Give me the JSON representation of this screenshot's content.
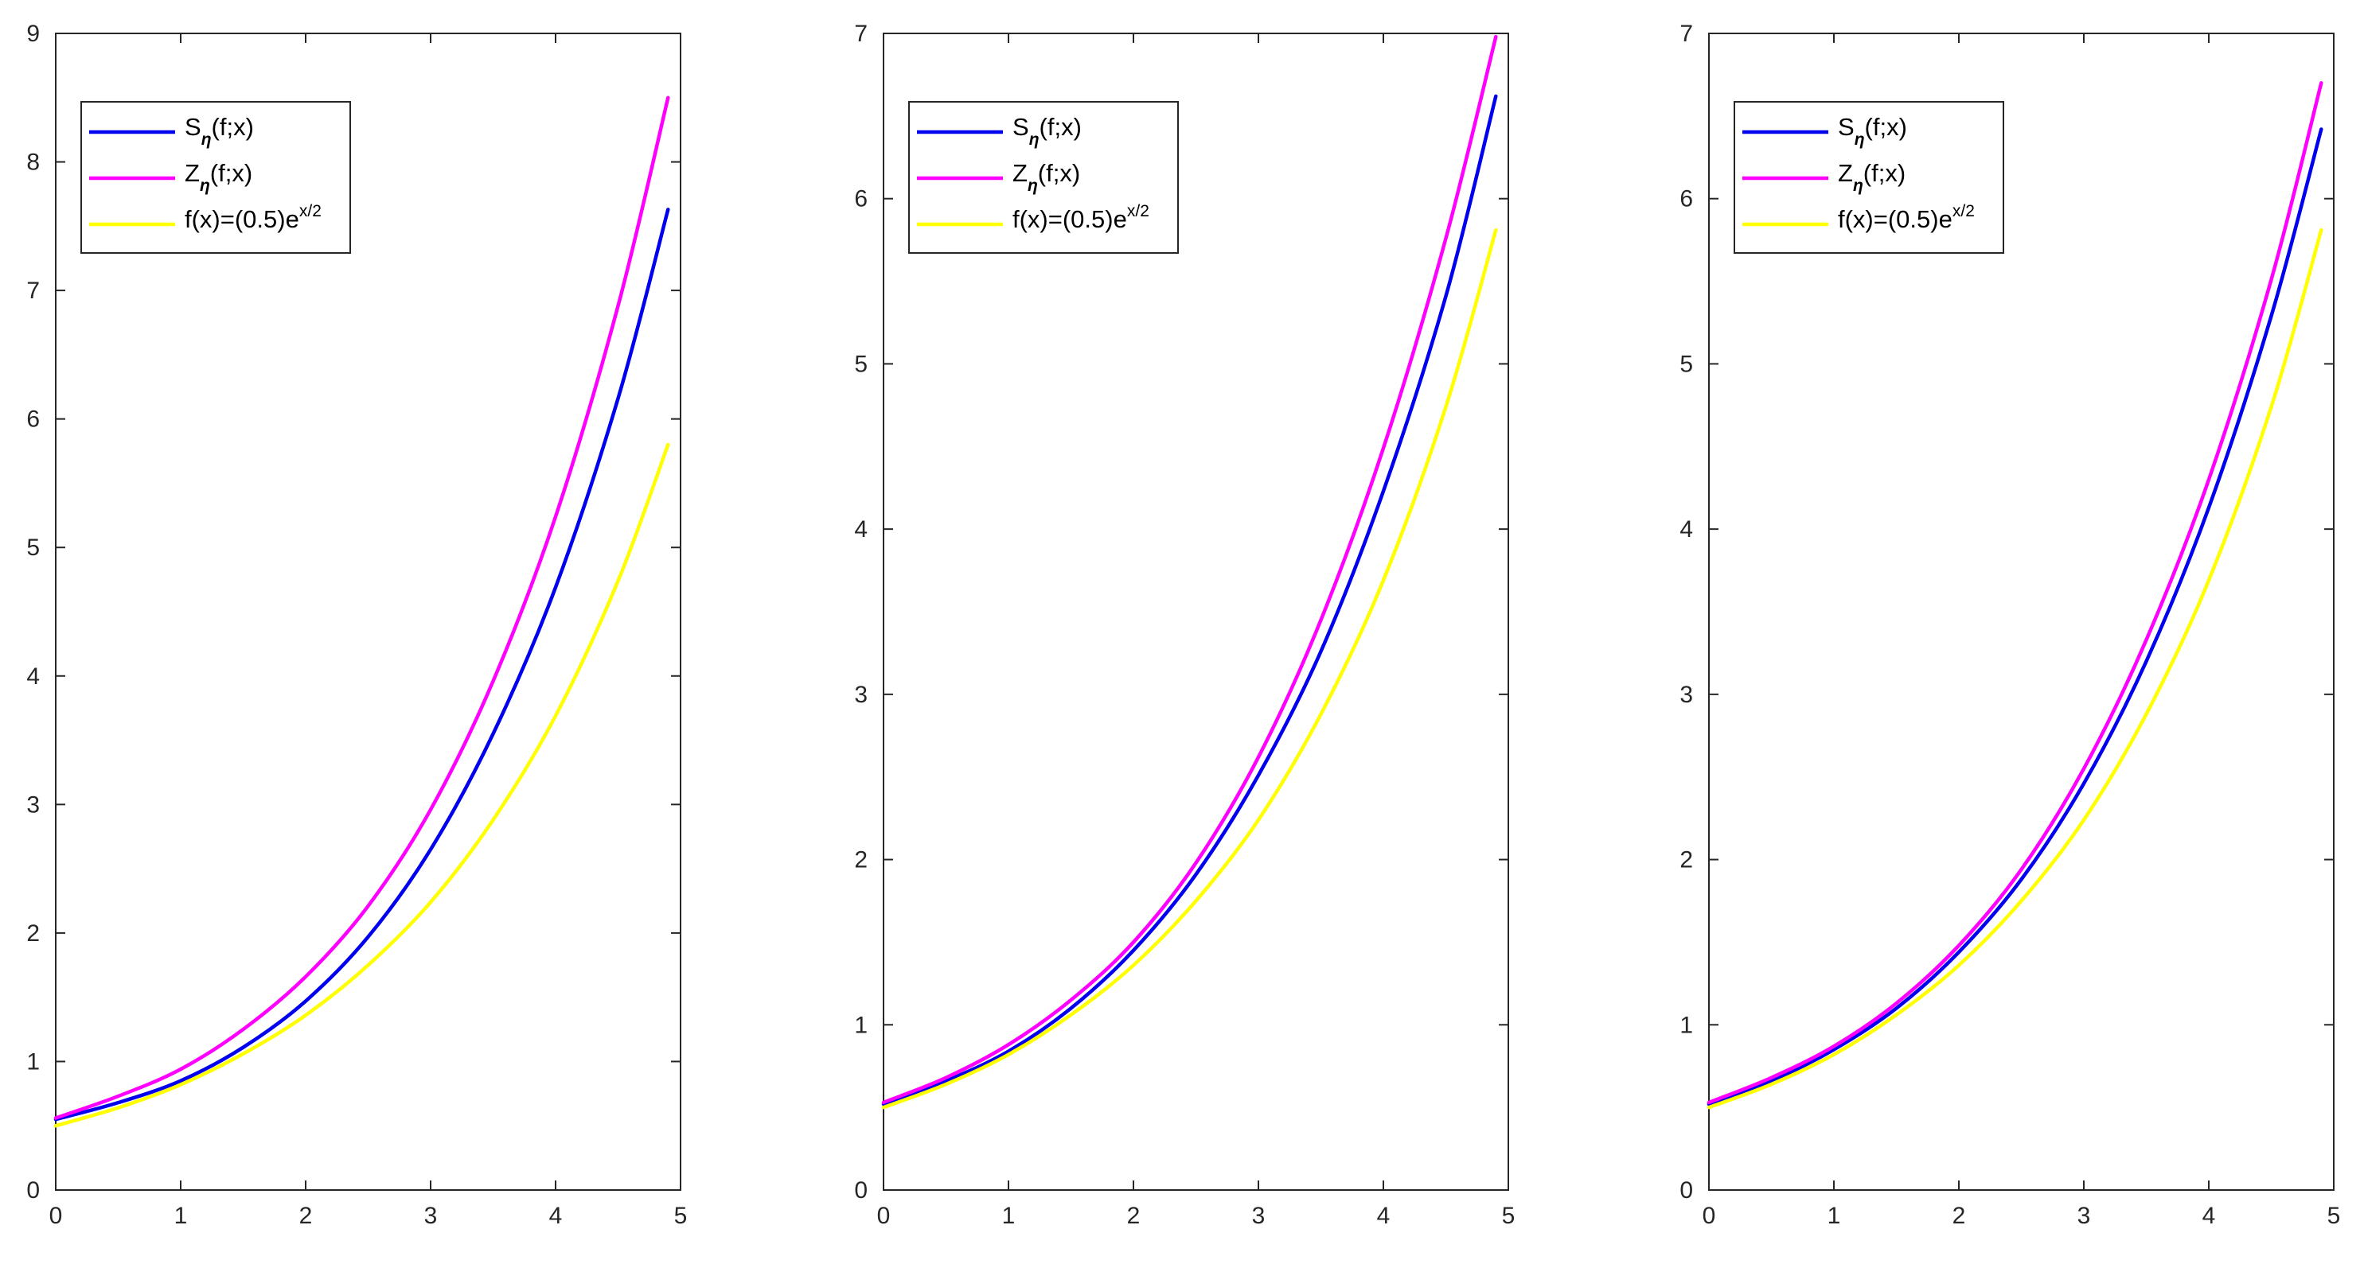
{
  "chart_data": [
    {
      "type": "line",
      "xlim": [
        0,
        5
      ],
      "ylim": [
        0,
        9
      ],
      "xticks": [
        "0",
        "1",
        "2",
        "3",
        "4",
        "5"
      ],
      "yticks": [
        "0",
        "1",
        "2",
        "3",
        "4",
        "5",
        "6",
        "7",
        "8",
        "9"
      ],
      "grid": false,
      "legend_position": "top-left",
      "series": [
        {
          "label_main": "S",
          "label_sub": "η",
          "label_tail": "(f;x)",
          "color": "#0000ee",
          "x": [
            0,
            0.5,
            1,
            1.5,
            2,
            2.5,
            3,
            3.5,
            4,
            4.5,
            4.9
          ],
          "y": [
            0.55,
            0.68,
            0.85,
            1.11,
            1.47,
            1.97,
            2.65,
            3.55,
            4.69,
            6.16,
            7.63
          ]
        },
        {
          "label_main": "Z",
          "label_sub": "η",
          "label_tail": "(f;x)",
          "color": "#ff00ff",
          "x": [
            0,
            0.5,
            1,
            1.5,
            2,
            2.5,
            3,
            3.5,
            4,
            4.5,
            4.9
          ],
          "y": [
            0.56,
            0.73,
            0.94,
            1.25,
            1.66,
            2.21,
            2.96,
            3.96,
            5.24,
            6.88,
            8.5
          ]
        },
        {
          "label_main": "f(x)=(0.5)e",
          "label_sup": "x/2",
          "label_tail": "",
          "color": "#ffff00",
          "x": [
            0,
            0.5,
            1,
            1.5,
            2,
            2.5,
            3,
            3.5,
            4,
            4.5,
            4.9
          ],
          "y": [
            0.5,
            0.64,
            0.82,
            1.06,
            1.36,
            1.75,
            2.24,
            2.88,
            3.69,
            4.74,
            5.8
          ]
        }
      ]
    },
    {
      "type": "line",
      "xlim": [
        0,
        5
      ],
      "ylim": [
        0,
        7
      ],
      "xticks": [
        "0",
        "1",
        "2",
        "3",
        "4",
        "5"
      ],
      "yticks": [
        "0",
        "1",
        "2",
        "3",
        "4",
        "5",
        "6",
        "7"
      ],
      "grid": false,
      "legend_position": "top-left",
      "series": [
        {
          "label_main": "S",
          "label_sub": "η",
          "label_tail": "(f;x)",
          "color": "#0000ee",
          "x": [
            0,
            0.5,
            1,
            1.5,
            2,
            2.5,
            3,
            3.5,
            4,
            4.5,
            4.9
          ],
          "y": [
            0.52,
            0.66,
            0.84,
            1.1,
            1.45,
            1.91,
            2.51,
            3.26,
            4.23,
            5.41,
            6.62
          ]
        },
        {
          "label_main": "Z",
          "label_sub": "η",
          "label_tail": "(f;x)",
          "color": "#ff00ff",
          "x": [
            0,
            0.5,
            1,
            1.5,
            2,
            2.5,
            3,
            3.5,
            4,
            4.5,
            4.9
          ],
          "y": [
            0.53,
            0.68,
            0.88,
            1.15,
            1.5,
            1.98,
            2.62,
            3.45,
            4.49,
            5.76,
            6.98
          ]
        },
        {
          "label_main": "f(x)=(0.5)e",
          "label_sup": "x/2",
          "label_tail": "",
          "color": "#ffff00",
          "x": [
            0,
            0.5,
            1,
            1.5,
            2,
            2.5,
            3,
            3.5,
            4,
            4.5,
            4.9
          ],
          "y": [
            0.5,
            0.64,
            0.82,
            1.06,
            1.36,
            1.75,
            2.24,
            2.88,
            3.69,
            4.74,
            5.81
          ]
        }
      ]
    },
    {
      "type": "line",
      "xlim": [
        0,
        5
      ],
      "ylim": [
        0,
        7
      ],
      "xticks": [
        "0",
        "1",
        "2",
        "3",
        "4",
        "5"
      ],
      "yticks": [
        "0",
        "1",
        "2",
        "3",
        "4",
        "5",
        "6",
        "7"
      ],
      "grid": false,
      "legend_position": "top-left",
      "series": [
        {
          "label_main": "S",
          "label_sub": "η",
          "label_tail": "(f;x)",
          "color": "#0000ee",
          "x": [
            0,
            0.5,
            1,
            1.5,
            2,
            2.5,
            3,
            3.5,
            4,
            4.5,
            4.9
          ],
          "y": [
            0.52,
            0.66,
            0.85,
            1.1,
            1.44,
            1.88,
            2.46,
            3.2,
            4.13,
            5.29,
            6.42
          ]
        },
        {
          "label_main": "Z",
          "label_sub": "η",
          "label_tail": "(f;x)",
          "color": "#ff00ff",
          "x": [
            0,
            0.5,
            1,
            1.5,
            2,
            2.5,
            3,
            3.5,
            4,
            4.5,
            4.9
          ],
          "y": [
            0.53,
            0.68,
            0.87,
            1.13,
            1.48,
            1.94,
            2.55,
            3.33,
            4.3,
            5.51,
            6.7
          ]
        },
        {
          "label_main": "f(x)=(0.5)e",
          "label_sup": "x/2",
          "label_tail": "",
          "color": "#ffff00",
          "x": [
            0,
            0.5,
            1,
            1.5,
            2,
            2.5,
            3,
            3.5,
            4,
            4.5,
            4.9
          ],
          "y": [
            0.5,
            0.64,
            0.82,
            1.06,
            1.36,
            1.75,
            2.24,
            2.88,
            3.69,
            4.74,
            5.81
          ]
        }
      ]
    }
  ]
}
